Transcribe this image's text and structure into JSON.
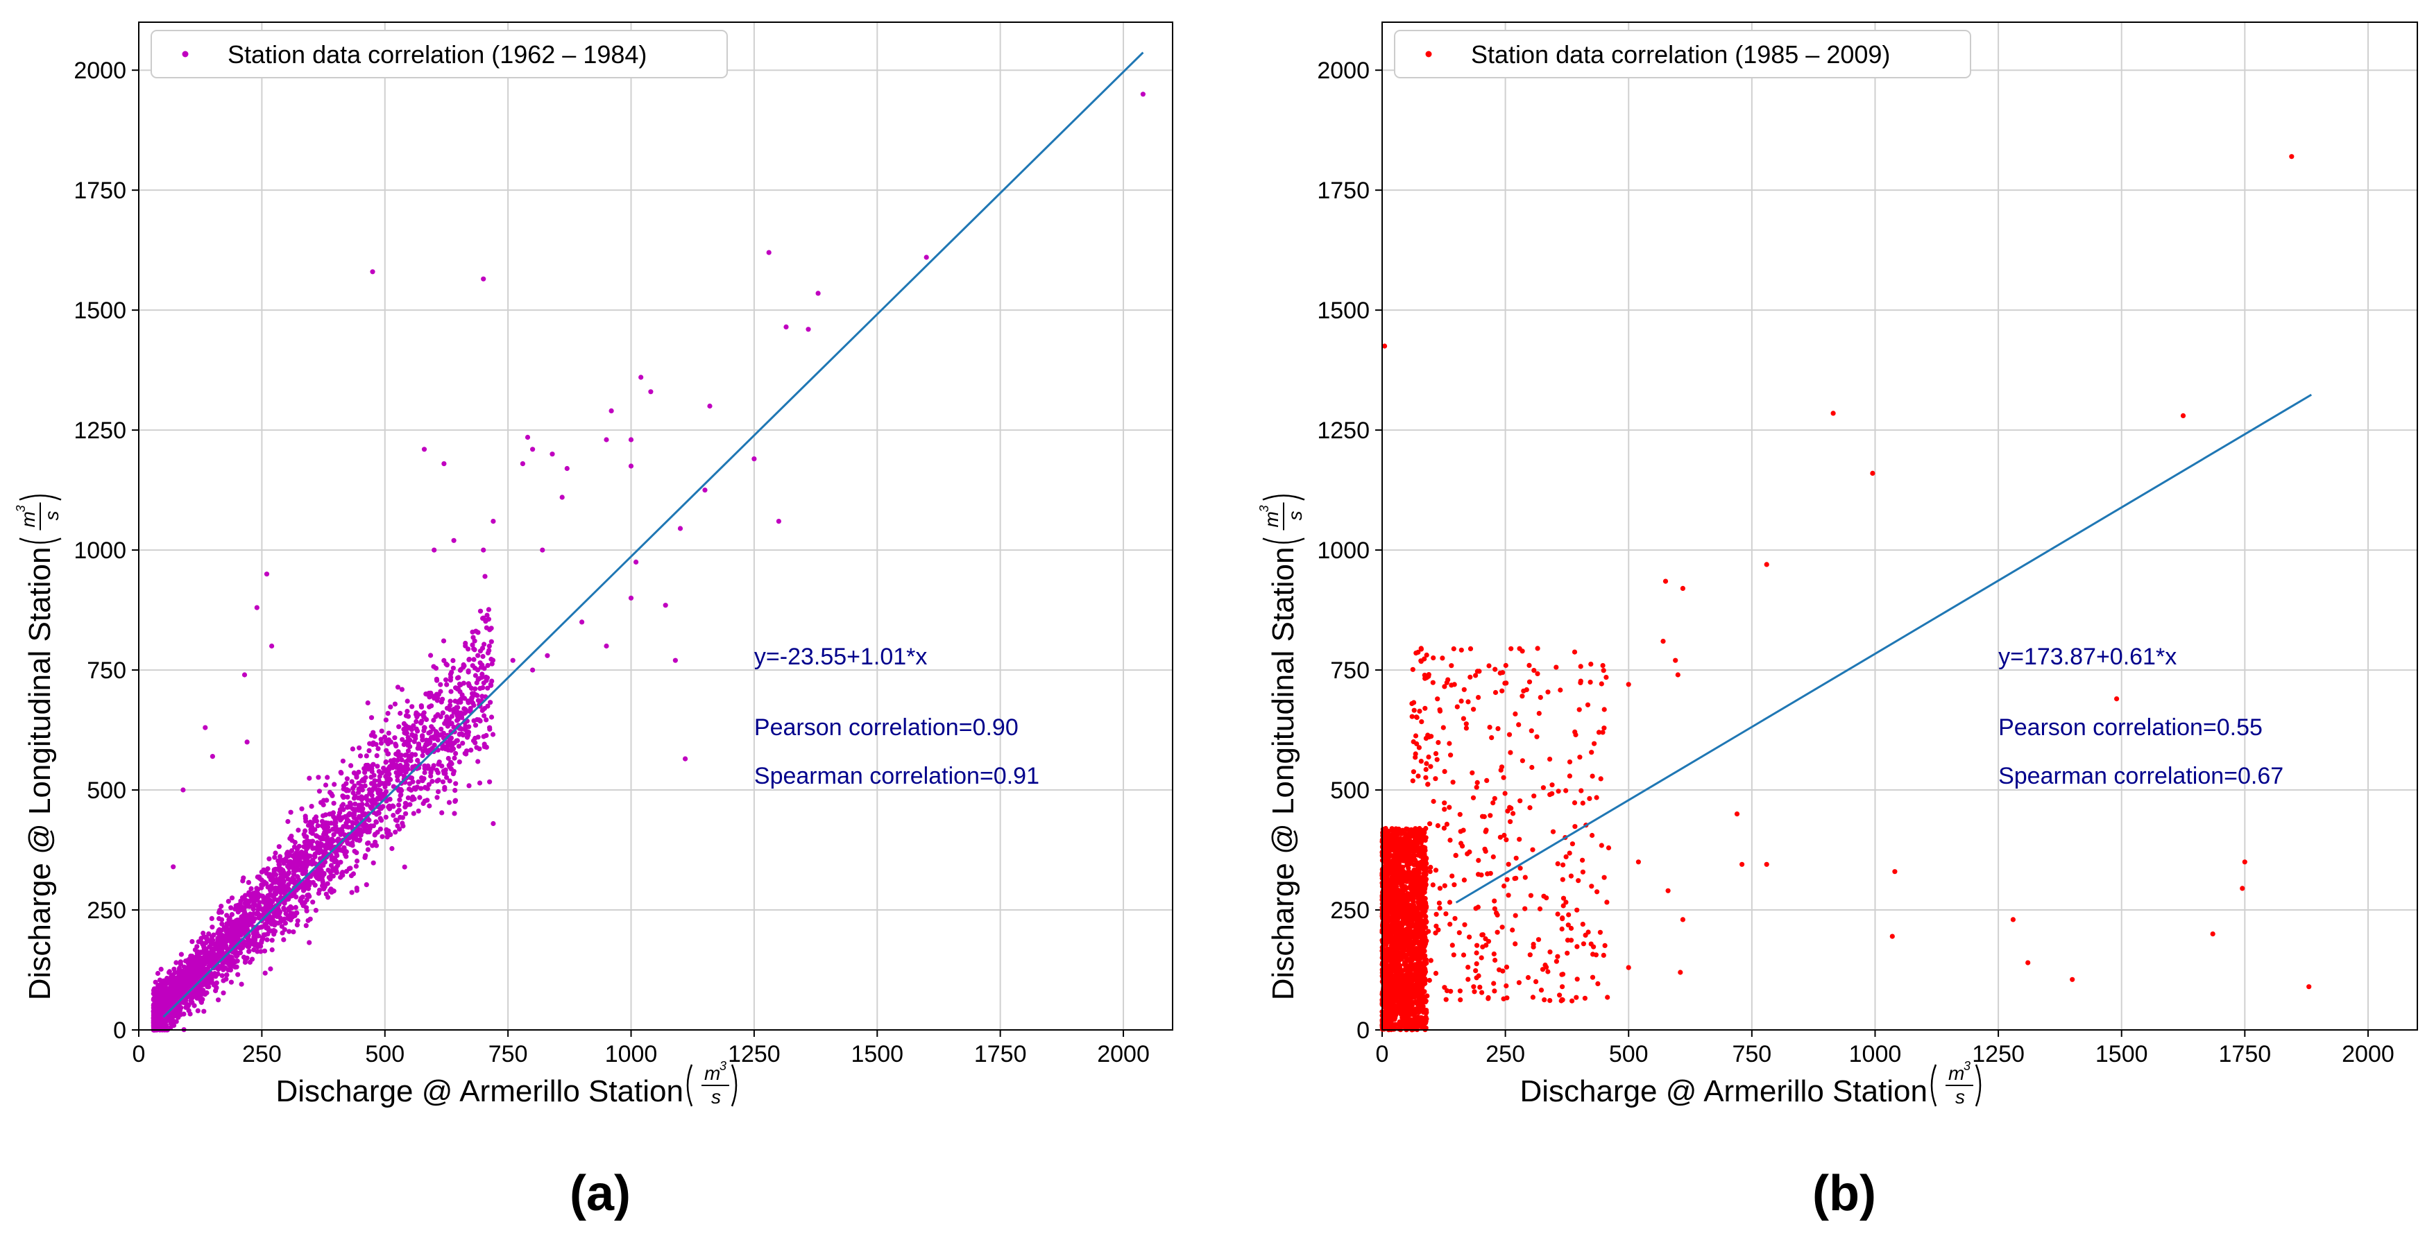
{
  "chart_data": [
    {
      "type": "scatter",
      "panel_label": "(a)",
      "legend": "Station data correlation (1962 – 1984)",
      "legend_position": "top-left",
      "point_color": "#c000c0",
      "fit_color": "#1f77b4",
      "xlabel": "Discharge @ Armerillo Station",
      "ylabel": "Discharge @ Longitudinal Station",
      "unit": {
        "num": "m",
        "exp": "3",
        "den": "s"
      },
      "xlim": [
        0,
        2100
      ],
      "ylim": [
        0,
        2100
      ],
      "xticks": [
        0,
        250,
        500,
        750,
        1000,
        1250,
        1500,
        1750,
        2000
      ],
      "yticks": [
        0,
        250,
        500,
        750,
        1000,
        1250,
        1500,
        1750,
        2000
      ],
      "grid": true,
      "fit_line": {
        "intercept": -23.55,
        "slope": 1.01,
        "x": [
          50,
          2040
        ]
      },
      "annotations": [
        "y=-23.55+1.01*x",
        "Pearson correlation=0.90",
        "Spearman correlation=0.91"
      ],
      "cluster": {
        "n": 3000,
        "x_range": [
          30,
          720
        ],
        "slope": 1.01,
        "intercept": -23.55,
        "noise": 60,
        "seed": 7
      },
      "points": [
        [
          2040,
          1950
        ],
        [
          1600,
          1610
        ],
        [
          1280,
          1620
        ],
        [
          1380,
          1535
        ],
        [
          1315,
          1465
        ],
        [
          1360,
          1460
        ],
        [
          475,
          1580
        ],
        [
          700,
          1565
        ],
        [
          1250,
          1190
        ],
        [
          1300,
          1060
        ],
        [
          1160,
          1300
        ],
        [
          1150,
          1125
        ],
        [
          1100,
          1045
        ],
        [
          1070,
          885
        ],
        [
          1090,
          770
        ],
        [
          1110,
          565
        ],
        [
          1020,
          1360
        ],
        [
          1040,
          1330
        ],
        [
          960,
          1290
        ],
        [
          1000,
          1230
        ],
        [
          1000,
          1175
        ],
        [
          950,
          1230
        ],
        [
          870,
          1170
        ],
        [
          840,
          1200
        ],
        [
          790,
          1235
        ],
        [
          780,
          1180
        ],
        [
          800,
          1210
        ],
        [
          580,
          1210
        ],
        [
          620,
          1180
        ],
        [
          640,
          1020
        ],
        [
          600,
          1000
        ],
        [
          700,
          1000
        ],
        [
          720,
          1060
        ],
        [
          860,
          1110
        ],
        [
          820,
          1000
        ],
        [
          900,
          850
        ],
        [
          950,
          800
        ],
        [
          1000,
          900
        ],
        [
          1010,
          975
        ],
        [
          830,
          780
        ],
        [
          800,
          750
        ],
        [
          760,
          770
        ],
        [
          720,
          430
        ],
        [
          260,
          950
        ],
        [
          270,
          800
        ],
        [
          240,
          880
        ],
        [
          215,
          740
        ],
        [
          135,
          630
        ],
        [
          150,
          570
        ],
        [
          220,
          600
        ],
        [
          90,
          500
        ],
        [
          70,
          340
        ]
      ]
    },
    {
      "type": "scatter",
      "panel_label": "(b)",
      "legend": "Station data correlation (1985 – 2009)",
      "legend_position": "top-left",
      "point_color": "#ff0000",
      "fit_color": "#1f77b4",
      "xlabel": "Discharge @ Armerillo Station",
      "ylabel": "Discharge @ Longitudinal Station",
      "unit": {
        "num": "m",
        "exp": "3",
        "den": "s"
      },
      "xlim": [
        0,
        2100
      ],
      "ylim": [
        0,
        2100
      ],
      "xticks": [
        0,
        250,
        500,
        750,
        1000,
        1250,
        1500,
        1750,
        2000
      ],
      "yticks": [
        0,
        250,
        500,
        750,
        1000,
        1250,
        1500,
        1750,
        2000
      ],
      "grid": true,
      "fit_line": {
        "intercept": 173.87,
        "slope": 0.61,
        "x": [
          150,
          1885
        ]
      },
      "annotations": [
        "y=173.87+0.61*x",
        "Pearson correlation=0.55",
        "Spearman correlation=0.67"
      ],
      "cluster": {
        "n": 2200,
        "x_range": [
          0,
          90
        ],
        "y_range": [
          0,
          420
        ],
        "seed": 11
      },
      "spread": {
        "n": 420,
        "x_range": [
          60,
          460
        ],
        "y_range": [
          60,
          800
        ],
        "seed": 23
      },
      "points": [
        [
          1845,
          1820
        ],
        [
          5,
          1425
        ],
        [
          915,
          1285
        ],
        [
          995,
          1160
        ],
        [
          1625,
          1280
        ],
        [
          780,
          970
        ],
        [
          575,
          935
        ],
        [
          610,
          920
        ],
        [
          570,
          810
        ],
        [
          595,
          770
        ],
        [
          600,
          740
        ],
        [
          500,
          720
        ],
        [
          1490,
          690
        ],
        [
          720,
          450
        ],
        [
          730,
          345
        ],
        [
          780,
          345
        ],
        [
          580,
          290
        ],
        [
          610,
          230
        ],
        [
          605,
          120
        ],
        [
          500,
          130
        ],
        [
          520,
          350
        ],
        [
          1040,
          330
        ],
        [
          1035,
          195
        ],
        [
          1280,
          230
        ],
        [
          1310,
          140
        ],
        [
          1400,
          105
        ],
        [
          1750,
          350
        ],
        [
          1745,
          295
        ],
        [
          1685,
          200
        ],
        [
          1880,
          90
        ]
      ]
    }
  ]
}
